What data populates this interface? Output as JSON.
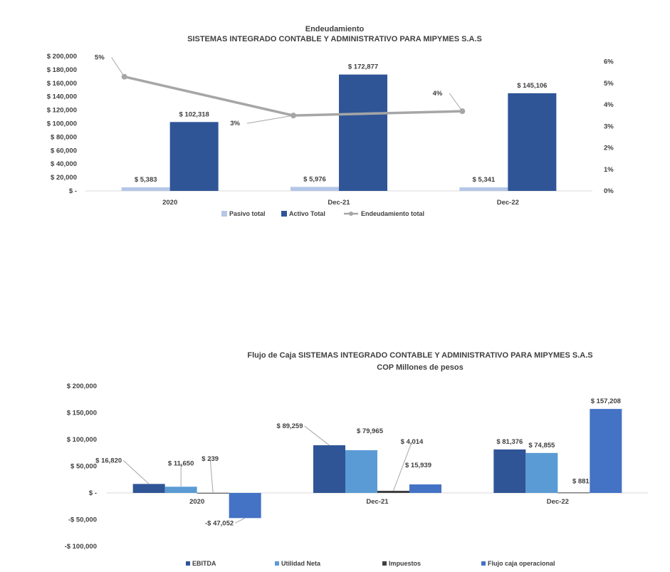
{
  "chart_data": [
    {
      "type": "bar",
      "title": "Endeudamiento",
      "subtitle": "SISTEMAS INTEGRADO CONTABLE Y ADMINISTRATIVO PARA MIPYMES S.A.S",
      "categories": [
        "2020",
        "Dec-21",
        "Dec-22"
      ],
      "series": [
        {
          "name": "Pasivo total",
          "type": "bar",
          "axis": "left",
          "values": [
            5383,
            5976,
            5341
          ],
          "labels": [
            "$ 5,383",
            "$ 5,976",
            "$ 5,341"
          ],
          "color": "#b4c7e7"
        },
        {
          "name": "Activo Total",
          "type": "bar",
          "axis": "left",
          "values": [
            102318,
            172877,
            145106
          ],
          "labels": [
            "$ 102,318",
            "$ 172,877",
            "$ 145,106"
          ],
          "color": "#2f5597"
        },
        {
          "name": "Endeudamiento total",
          "type": "line",
          "axis": "right",
          "values": [
            5.3,
            3.5,
            3.7
          ],
          "labels": [
            "5%",
            "3%",
            "4%"
          ],
          "color": "#a6a6a6"
        }
      ],
      "ylim": [
        0,
        200000
      ],
      "y_ticks": [
        "$ -",
        "$ 20,000",
        "$ 40,000",
        "$ 60,000",
        "$ 80,000",
        "$ 100,000",
        "$ 120,000",
        "$ 140,000",
        "$ 160,000",
        "$ 180,000",
        "$ 200,000"
      ],
      "y2lim": [
        0,
        6.25
      ],
      "y2_ticks": [
        "0%",
        "1%",
        "2%",
        "3%",
        "4%",
        "5%",
        "6%"
      ],
      "grid": false,
      "legend_position": "bottom"
    },
    {
      "type": "bar",
      "title": "Flujo de Caja SISTEMAS INTEGRADO CONTABLE Y ADMINISTRATIVO PARA MIPYMES S.A.S",
      "subtitle": "COP Millones de pesos",
      "categories": [
        "2020",
        "Dec-21",
        "Dec-22"
      ],
      "series": [
        {
          "name": "EBITDA",
          "values": [
            16820,
            89259,
            81376
          ],
          "labels": [
            "$ 16,820",
            "$ 89,259",
            "$ 81,376"
          ],
          "color": "#2f5597"
        },
        {
          "name": "Utilidad Neta",
          "values": [
            11650,
            79965,
            74855
          ],
          "labels": [
            "$ 11,650",
            "$ 79,965",
            "$ 74,855"
          ],
          "color": "#5b9bd5"
        },
        {
          "name": "Impuestos",
          "values": [
            239,
            4014,
            881
          ],
          "labels": [
            "$ 239",
            "$ 4,014",
            "$ 881"
          ],
          "color": "#404040"
        },
        {
          "name": "Flujo caja operacional",
          "values": [
            -47052,
            15939,
            157208
          ],
          "labels": [
            "-$ 47,052",
            "$ 15,939",
            "$ 157,208"
          ],
          "color": "#4472c4"
        }
      ],
      "ylim": [
        -100000,
        200000
      ],
      "y_ticks": [
        "-$ 100,000",
        "-$ 50,000",
        "$ -",
        "$ 50,000",
        "$ 100,000",
        "$ 150,000",
        "$ 200,000"
      ],
      "grid": false,
      "legend_position": "bottom"
    }
  ]
}
